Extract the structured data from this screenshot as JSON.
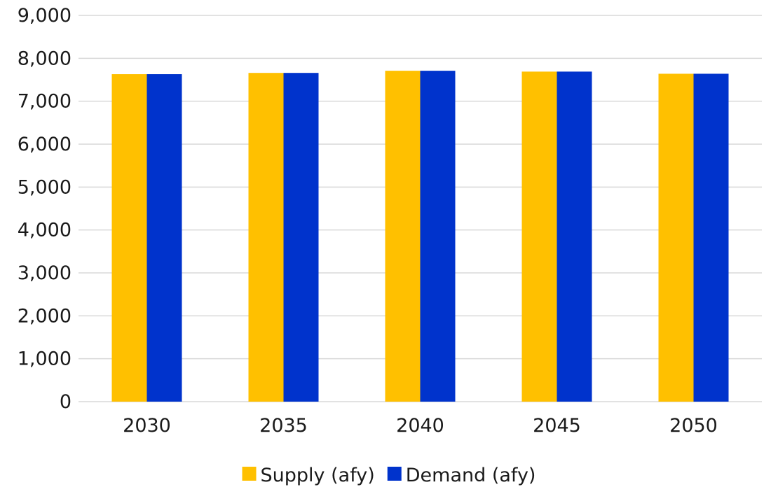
{
  "chart_data": {
    "type": "bar",
    "categories": [
      "2030",
      "2035",
      "2040",
      "2045",
      "2050"
    ],
    "series": [
      {
        "name": "Supply (afy)",
        "color": "#ffc000",
        "values": [
          7630,
          7660,
          7710,
          7690,
          7640
        ]
      },
      {
        "name": "Demand (afy)",
        "color": "#0033cc",
        "values": [
          7630,
          7660,
          7710,
          7690,
          7640
        ]
      }
    ],
    "title": "",
    "xlabel": "",
    "ylabel": "",
    "ylim": [
      0,
      9000
    ],
    "yticks": [
      0,
      1000,
      2000,
      3000,
      4000,
      5000,
      6000,
      7000,
      8000,
      9000
    ],
    "ytick_labels": [
      "0",
      "1,000",
      "2,000",
      "3,000",
      "4,000",
      "5,000",
      "6,000",
      "7,000",
      "8,000",
      "9,000"
    ],
    "grid": true,
    "legend_position": "bottom"
  }
}
